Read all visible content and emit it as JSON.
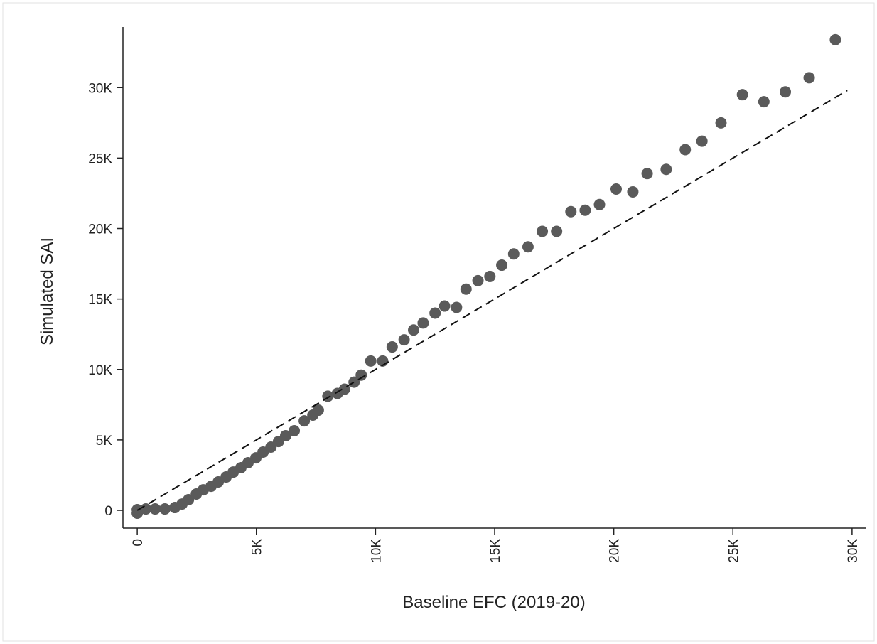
{
  "chart_data": {
    "type": "scatter",
    "x_label": "Baseline EFC (2019-20)",
    "y_label": "Simulated SAI",
    "xlim": [
      -600,
      30570
    ],
    "ylim": [
      -1260,
      34300
    ],
    "xticks": [
      0,
      {
        "value": 5000,
        "label": "5K"
      },
      {
        "value": 10000,
        "label": "10K"
      },
      {
        "value": 15000,
        "label": "15K"
      },
      {
        "value": 20000,
        "label": "20K"
      },
      {
        "value": 25000,
        "label": "25K"
      },
      {
        "value": 30000,
        "label": "30K"
      }
    ],
    "yticks": [
      0,
      {
        "value": 5000,
        "label": "5K"
      },
      {
        "value": 10000,
        "label": "10K"
      },
      {
        "value": 15000,
        "label": "15K"
      },
      {
        "value": 20000,
        "label": "20K"
      },
      {
        "value": 25000,
        "label": "25K"
      },
      {
        "value": 30000,
        "label": "30K"
      }
    ],
    "series": [
      {
        "type": "scatter",
        "color": "#5a5a5a",
        "x": [
          0,
          0,
          360,
          750,
          1160,
          1580,
          1880,
          2150,
          2480,
          2770,
          3100,
          3400,
          3730,
          4030,
          4350,
          4650,
          4980,
          5280,
          5610,
          5930,
          6230,
          6590,
          7010,
          7370,
          7600,
          8000,
          8400,
          8700,
          9100,
          9400,
          9800,
          10300,
          10700,
          11200,
          11600,
          12000,
          12500,
          12900,
          13400,
          13800,
          14300,
          14800,
          15300,
          15800,
          16400,
          17000,
          17600,
          18200,
          18800,
          19400,
          20100,
          20800,
          21400,
          22200,
          23000,
          23700,
          24500,
          25400,
          26300,
          27200,
          28200,
          29300
        ],
        "values": [
          -200,
          50,
          100,
          100,
          100,
          200,
          450,
          760,
          1160,
          1460,
          1710,
          2020,
          2370,
          2720,
          3030,
          3380,
          3730,
          4140,
          4490,
          4890,
          5300,
          5650,
          6350,
          6760,
          7110,
          8100,
          8300,
          8600,
          9100,
          9600,
          10600,
          10600,
          11600,
          12100,
          12800,
          13300,
          14000,
          14500,
          14400,
          15700,
          16300,
          16600,
          17400,
          18200,
          18700,
          19800,
          19800,
          21200,
          21300,
          21700,
          22800,
          22600,
          23900,
          24200,
          25600,
          26200,
          27500,
          29500,
          29000,
          29700,
          30700,
          33400
        ]
      },
      {
        "type": "line",
        "color": "#111111",
        "dashed": true,
        "x": [
          0,
          29800
        ],
        "values": [
          0,
          29800
        ]
      }
    ]
  }
}
